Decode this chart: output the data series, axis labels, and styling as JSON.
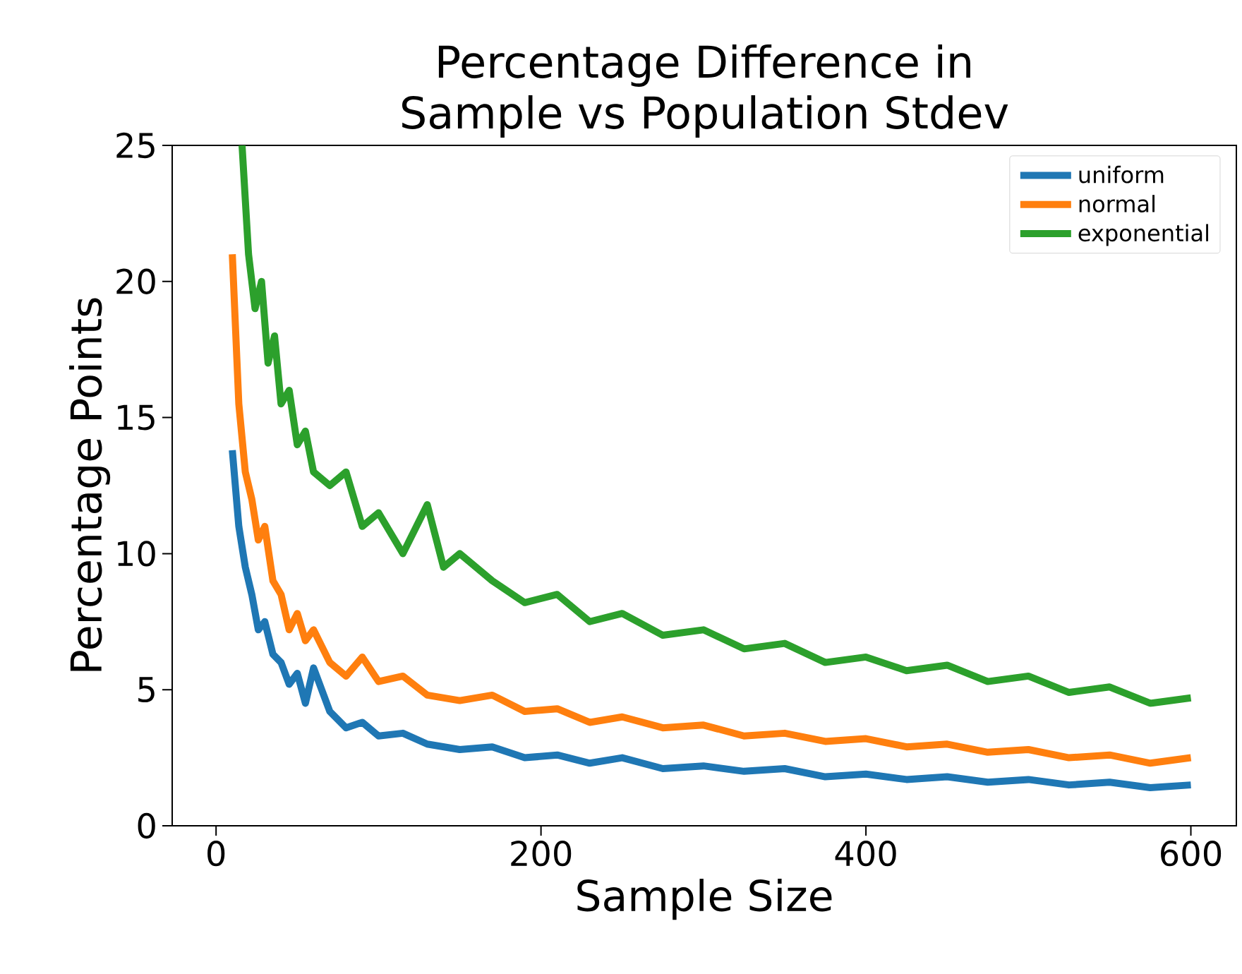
{
  "chart_data": {
    "type": "line",
    "title": "Percentage Difference in\nSample vs Population Stdev",
    "xlabel": "Sample Size",
    "ylabel": "Percentage Points",
    "xlim": [
      -27,
      628
    ],
    "ylim": [
      0,
      25
    ],
    "xticks": [
      0,
      200,
      400,
      600
    ],
    "yticks": [
      0,
      5,
      10,
      15,
      20,
      25
    ],
    "legend": "top right",
    "series": [
      {
        "name": "uniform",
        "color": "#1f77b4",
        "x": [
          10,
          14,
          18,
          22,
          26,
          30,
          35,
          40,
          45,
          50,
          55,
          60,
          70,
          80,
          90,
          100,
          115,
          130,
          150,
          170,
          190,
          210,
          230,
          250,
          275,
          300,
          325,
          350,
          375,
          400,
          425,
          450,
          475,
          500,
          525,
          550,
          575,
          600
        ],
        "values": [
          13.8,
          11,
          9.5,
          8.5,
          7.2,
          7.5,
          6.3,
          6,
          5.2,
          5.6,
          4.5,
          5.8,
          4.2,
          3.6,
          3.8,
          3.3,
          3.4,
          3,
          2.8,
          2.9,
          2.5,
          2.6,
          2.3,
          2.5,
          2.1,
          2.2,
          2,
          2.1,
          1.8,
          1.9,
          1.7,
          1.8,
          1.6,
          1.7,
          1.5,
          1.6,
          1.4,
          1.5
        ]
      },
      {
        "name": "normal",
        "color": "#ff7f0e",
        "x": [
          10,
          14,
          18,
          22,
          26,
          30,
          35,
          40,
          45,
          50,
          55,
          60,
          70,
          80,
          90,
          100,
          115,
          130,
          150,
          170,
          190,
          210,
          230,
          250,
          275,
          300,
          325,
          350,
          375,
          400,
          425,
          450,
          475,
          500,
          525,
          550,
          575,
          600
        ],
        "values": [
          21,
          15.5,
          13,
          12,
          10.5,
          11,
          9,
          8.5,
          7.2,
          7.8,
          6.8,
          7.2,
          6,
          5.5,
          6.2,
          5.3,
          5.5,
          4.8,
          4.6,
          4.8,
          4.2,
          4.3,
          3.8,
          4,
          3.6,
          3.7,
          3.3,
          3.4,
          3.1,
          3.2,
          2.9,
          3,
          2.7,
          2.8,
          2.5,
          2.6,
          2.3,
          2.5
        ]
      },
      {
        "name": "exponential",
        "color": "#2ca02c",
        "x": [
          16,
          20,
          24,
          28,
          32,
          36,
          40,
          45,
          50,
          55,
          60,
          70,
          80,
          90,
          100,
          115,
          130,
          140,
          150,
          170,
          190,
          210,
          230,
          250,
          275,
          300,
          325,
          350,
          375,
          400,
          425,
          450,
          475,
          500,
          525,
          550,
          575,
          600
        ],
        "values": [
          25,
          21,
          19,
          20,
          17,
          18,
          15.5,
          16,
          14,
          14.5,
          13,
          12.5,
          13,
          11,
          11.5,
          10,
          11.8,
          9.5,
          10,
          9,
          8.2,
          8.5,
          7.5,
          7.8,
          7,
          7.2,
          6.5,
          6.7,
          6,
          6.2,
          5.7,
          5.9,
          5.3,
          5.5,
          4.9,
          5.1,
          4.5,
          4.7
        ]
      }
    ]
  }
}
